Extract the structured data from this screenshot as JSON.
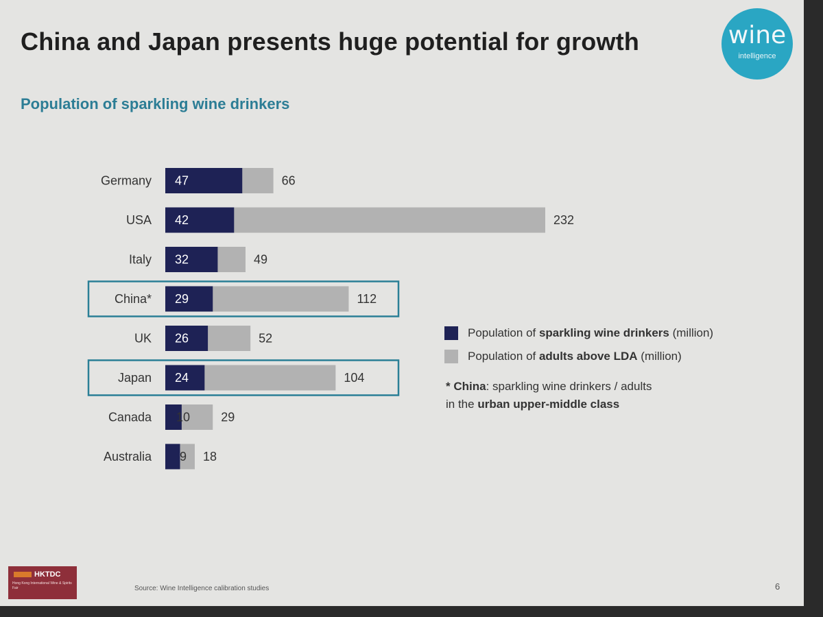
{
  "slide": {
    "title": "China and Japan presents huge potential for growth",
    "subtitle": "Population of sparkling wine drinkers",
    "logo": {
      "word": "wine",
      "sub": "intelligence"
    },
    "source": "Source: Wine Intelligence calibration studies",
    "page_number": "6",
    "footer_logo": {
      "name": "HKTDC",
      "sub": "Hong Kong International Wine & Spirits Fair"
    }
  },
  "legend": {
    "item1_prefix": "Population of ",
    "item1_bold": "sparkling wine drinkers",
    "item1_suffix": " (million)",
    "item2_prefix": "Population of ",
    "item2_bold": "adults above LDA",
    "item2_suffix": " (million)"
  },
  "note": {
    "star_label": "* China",
    "line1_rest": ": sparkling wine drinkers / adults",
    "line2_prefix": "in the ",
    "line2_bold": "urban upper-middle class"
  },
  "colors": {
    "drinkers": "#1e2255",
    "adults": "#b2b2b2",
    "highlight_border": "#2a7f96",
    "accent": "#2aa6c3"
  },
  "chart_data": {
    "type": "bar",
    "orientation": "horizontal",
    "categories": [
      "Germany",
      "USA",
      "Italy",
      "China*",
      "UK",
      "Japan",
      "Canada",
      "Australia"
    ],
    "series": [
      {
        "name": "Population of sparkling wine drinkers (million)",
        "values": [
          47,
          42,
          32,
          29,
          26,
          24,
          10,
          9
        ]
      },
      {
        "name": "Population of adults above LDA (million)",
        "values": [
          66,
          232,
          49,
          112,
          52,
          104,
          29,
          18
        ]
      }
    ],
    "highlighted": [
      "China*",
      "Japan"
    ],
    "xlim": [
      0,
      232
    ],
    "grid": false,
    "legend": "right"
  }
}
